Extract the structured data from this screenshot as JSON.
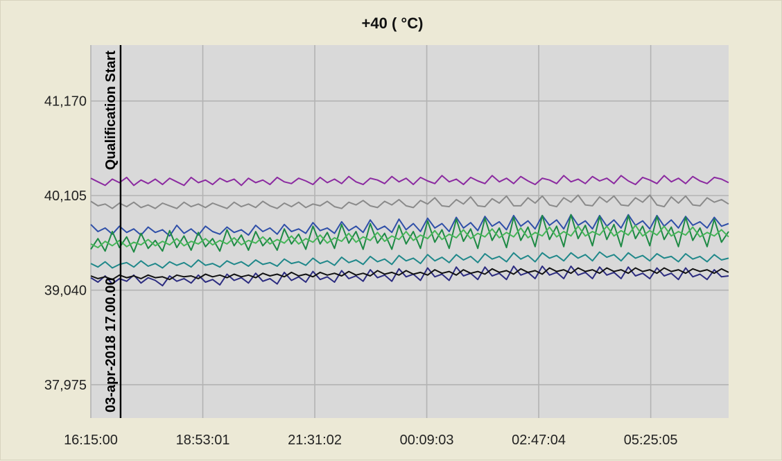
{
  "chart_data": {
    "type": "line",
    "title": "+40 ( °C)",
    "xlabel": "",
    "ylabel": "",
    "x_tick_labels": [
      "16:15:00",
      "18:53:01",
      "21:31:02",
      "00:09:03",
      "02:47:04",
      "05:25:05"
    ],
    "y_ticks": [
      37975,
      39040,
      40105,
      41170
    ],
    "y_tick_labels": [
      "37,975",
      "39,040",
      "40,105",
      "41,170"
    ],
    "x_unit": "minutes after 16:15:00",
    "xlim": [
      0,
      900
    ],
    "ylim": [
      37600,
      41800
    ],
    "grid": true,
    "background": "#d9d9d9",
    "markers": [
      {
        "x": 42,
        "label_top": "Qualification Start",
        "label_bottom": "03-apr-2018 17.00.00"
      }
    ],
    "series": [
      {
        "color": "#8b2aa0",
        "values": [
          40300,
          40260,
          40220,
          40290,
          40250,
          40310,
          40220,
          40280,
          40240,
          40290,
          40230,
          40300,
          40260,
          40220,
          40310,
          40250,
          40280,
          40230,
          40300,
          40260,
          40290,
          40220,
          40300,
          40250,
          40280,
          40230,
          40310,
          40260,
          40240,
          40300,
          40270,
          40230,
          40310,
          40250,
          40290,
          40240,
          40320,
          40260,
          40230,
          40300,
          40280,
          40240,
          40320,
          40260,
          40300,
          40230,
          40310,
          40270,
          40240,
          40330,
          40260,
          40290,
          40230,
          40310,
          40270,
          40240,
          40330,
          40260,
          40300,
          40240,
          40320,
          40270,
          40230,
          40300,
          40280,
          40240,
          40330,
          40260,
          40290,
          40240,
          40320,
          40270,
          40300,
          40240,
          40330,
          40270,
          40230,
          40310,
          40280,
          40240,
          40330,
          40260,
          40300,
          40240,
          40320,
          40270,
          40240,
          40310,
          40290,
          40250
        ]
      },
      {
        "color": "#8a8a8a",
        "values": [
          40040,
          39990,
          40010,
          39960,
          40020,
          39980,
          40030,
          39970,
          40000,
          39960,
          40020,
          39990,
          39960,
          40030,
          39980,
          40010,
          39970,
          40020,
          39990,
          39960,
          40030,
          39980,
          40010,
          39970,
          40040,
          39990,
          39960,
          40020,
          39980,
          40030,
          39970,
          40010,
          39990,
          40040,
          39980,
          39960,
          40030,
          40000,
          40050,
          39990,
          39970,
          40040,
          40000,
          40060,
          39990,
          39970,
          40050,
          40010,
          40080,
          39990,
          39980,
          40060,
          40010,
          40090,
          39990,
          39980,
          40070,
          40020,
          40100,
          39990,
          39990,
          40080,
          40020,
          40100,
          40000,
          39980,
          40080,
          40030,
          40110,
          40000,
          39990,
          40090,
          40030,
          40100,
          40000,
          39990,
          40080,
          40030,
          40110,
          40000,
          39980,
          40090,
          40020,
          40100,
          40000,
          39990,
          40080,
          40030,
          40060,
          40010
        ]
      },
      {
        "color": "#2f4fa8",
        "values": [
          39780,
          39700,
          39740,
          39670,
          39760,
          39690,
          39730,
          39660,
          39750,
          39690,
          39720,
          39650,
          39770,
          39680,
          39730,
          39660,
          39760,
          39700,
          39670,
          39750,
          39690,
          39720,
          39660,
          39770,
          39700,
          39740,
          39670,
          39780,
          39700,
          39730,
          39680,
          39800,
          39710,
          39740,
          39680,
          39810,
          39710,
          39760,
          39690,
          39830,
          39720,
          39760,
          39690,
          39840,
          39720,
          39790,
          39700,
          39850,
          39740,
          39790,
          39700,
          39860,
          39740,
          39800,
          39710,
          39870,
          39760,
          39810,
          39720,
          39880,
          39760,
          39820,
          39730,
          39880,
          39770,
          39830,
          39730,
          39890,
          39770,
          39820,
          39730,
          39880,
          39760,
          39830,
          39740,
          39890,
          39770,
          39820,
          39730,
          39880,
          39760,
          39830,
          39740,
          39870,
          39770,
          39810,
          39740,
          39860,
          39760,
          39790
        ]
      },
      {
        "color": "#1e8a44",
        "values": [
          39500,
          39620,
          39480,
          39700,
          39520,
          39640,
          39470,
          39680,
          39510,
          39600,
          39480,
          39710,
          39520,
          39650,
          39490,
          39690,
          39530,
          39620,
          39480,
          39720,
          39540,
          39660,
          39490,
          39700,
          39540,
          39630,
          39490,
          39730,
          39560,
          39670,
          39500,
          39760,
          39560,
          39690,
          39510,
          39780,
          39570,
          39700,
          39500,
          39790,
          39570,
          39680,
          39500,
          39770,
          39560,
          39700,
          39510,
          39820,
          39580,
          39720,
          39510,
          39840,
          39590,
          39730,
          39510,
          39850,
          39600,
          39740,
          39520,
          39860,
          39600,
          39750,
          39530,
          39880,
          39610,
          39760,
          39530,
          39890,
          39620,
          39770,
          39540,
          39870,
          39610,
          39780,
          39530,
          39880,
          39620,
          39760,
          39540,
          39870,
          39610,
          39750,
          39530,
          39860,
          39600,
          39740,
          39530,
          39840,
          39580,
          39700
        ]
      },
      {
        "color": "#46b558",
        "values": [
          39560,
          39520,
          39590,
          39540,
          39600,
          39530,
          39580,
          39550,
          39610,
          39540,
          39590,
          39550,
          39620,
          39540,
          39590,
          39560,
          39620,
          39550,
          39600,
          39560,
          39630,
          39550,
          39600,
          39570,
          39640,
          39560,
          39610,
          39570,
          39650,
          39560,
          39620,
          39580,
          39660,
          39570,
          39630,
          39590,
          39680,
          39580,
          39640,
          39600,
          39690,
          39590,
          39650,
          39610,
          39700,
          39600,
          39660,
          39620,
          39710,
          39610,
          39670,
          39630,
          39720,
          39620,
          39680,
          39640,
          39730,
          39630,
          39690,
          39640,
          39740,
          39630,
          39690,
          39650,
          39750,
          39640,
          39700,
          39650,
          39760,
          39650,
          39700,
          39660,
          39760,
          39650,
          39710,
          39660,
          39770,
          39650,
          39710,
          39660,
          39760,
          39650,
          39700,
          39660,
          39750,
          39640,
          39690,
          39650,
          39720,
          39640
        ]
      },
      {
        "color": "#20888a",
        "values": [
          39340,
          39300,
          39360,
          39290,
          39330,
          39350,
          39300,
          39370,
          39310,
          39340,
          39290,
          39360,
          39320,
          39350,
          39300,
          39380,
          39320,
          39340,
          39300,
          39370,
          39330,
          39360,
          39310,
          39380,
          39330,
          39350,
          39310,
          39390,
          39340,
          39360,
          39320,
          39400,
          39340,
          39370,
          39320,
          39410,
          39350,
          39380,
          39330,
          39420,
          39360,
          39390,
          39330,
          39430,
          39370,
          39400,
          39340,
          39440,
          39370,
          39410,
          39350,
          39440,
          39380,
          39420,
          39350,
          39450,
          39390,
          39420,
          39360,
          39460,
          39390,
          39430,
          39360,
          39460,
          39400,
          39430,
          39370,
          39460,
          39400,
          39440,
          39370,
          39470,
          39410,
          39440,
          39370,
          39460,
          39400,
          39430,
          39370,
          39450,
          39400,
          39420,
          39360,
          39450,
          39390,
          39420,
          39360,
          39440,
          39380,
          39400
        ]
      },
      {
        "color": "#2c2c80",
        "values": [
          39180,
          39130,
          39200,
          39110,
          39170,
          39140,
          39210,
          39120,
          39180,
          39150,
          39090,
          39200,
          39140,
          39170,
          39120,
          39210,
          39130,
          39160,
          39100,
          39220,
          39150,
          39180,
          39120,
          39230,
          39140,
          39170,
          39110,
          39240,
          39150,
          39190,
          39130,
          39250,
          39160,
          39190,
          39130,
          39260,
          39170,
          39200,
          39140,
          39270,
          39180,
          39210,
          39140,
          39280,
          39190,
          39220,
          39150,
          39290,
          39190,
          39220,
          39150,
          39300,
          39200,
          39230,
          39160,
          39300,
          39200,
          39230,
          39160,
          39310,
          39210,
          39240,
          39170,
          39310,
          39210,
          39240,
          39170,
          39310,
          39210,
          39240,
          39170,
          39300,
          39210,
          39240,
          39170,
          39300,
          39200,
          39230,
          39170,
          39290,
          39200,
          39230,
          39160,
          39290,
          39190,
          39220,
          39160,
          39270,
          39190,
          39200
        ]
      },
      {
        "color": "#111111",
        "values": [
          39200,
          39170,
          39190,
          39160,
          39210,
          39180,
          39200,
          39170,
          39210,
          39180,
          39190,
          39160,
          39210,
          39190,
          39200,
          39170,
          39220,
          39190,
          39210,
          39180,
          39220,
          39190,
          39210,
          39180,
          39230,
          39200,
          39220,
          39190,
          39240,
          39200,
          39220,
          39190,
          39240,
          39210,
          39230,
          39200,
          39250,
          39210,
          39230,
          39200,
          39260,
          39220,
          39240,
          39210,
          39260,
          39220,
          39240,
          39210,
          39270,
          39230,
          39250,
          39210,
          39270,
          39230,
          39250,
          39220,
          39280,
          39240,
          39260,
          39220,
          39280,
          39240,
          39260,
          39220,
          39290,
          39250,
          39270,
          39230,
          39290,
          39250,
          39270,
          39230,
          39290,
          39250,
          39270,
          39230,
          39290,
          39250,
          39270,
          39230,
          39290,
          39250,
          39270,
          39230,
          39280,
          39250,
          39270,
          39230,
          39280,
          39240
        ]
      }
    ]
  }
}
